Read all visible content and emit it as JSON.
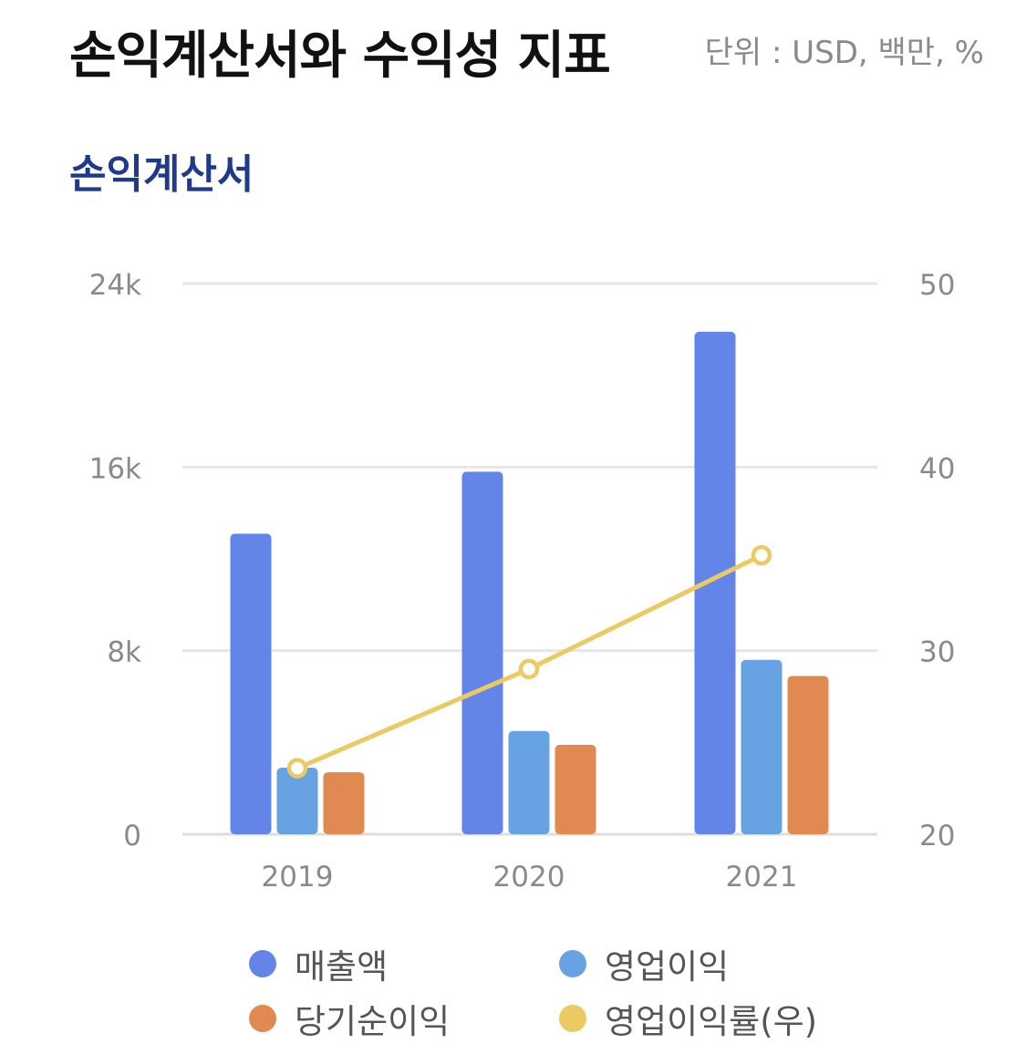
{
  "header": {
    "title": "손익계산서와 수익성 지표",
    "unit": "단위 : USD, 백만, %"
  },
  "section": {
    "title": "손익계산서"
  },
  "colors": {
    "revenue": "#6485e8",
    "operating_income": "#67a3e2",
    "net_income": "#e08a52",
    "operating_margin": "#ebc963",
    "grid": "#e6e6e6",
    "tick_text": "#8a8a8a"
  },
  "chart_data": {
    "type": "bar",
    "title": "",
    "xlabel": "",
    "ylabel": "",
    "categories": [
      "2019",
      "2020",
      "2021"
    ],
    "ylim": [
      0,
      24000
    ],
    "y_ticks": [
      0,
      8000,
      16000,
      24000
    ],
    "y_tick_labels": [
      "0",
      "8k",
      "16k",
      "24k"
    ],
    "y2lim": [
      20,
      50
    ],
    "y2_ticks": [
      20,
      30,
      40,
      50
    ],
    "y2_tick_labels": [
      "20",
      "30",
      "40",
      "50"
    ],
    "grid": true,
    "series": [
      {
        "name": "매출액",
        "type": "bar",
        "axis": "left",
        "color": "#6485e8",
        "values": [
          13100,
          15800,
          21900
        ]
      },
      {
        "name": "영업이익",
        "type": "bar",
        "axis": "left",
        "color": "#67a3e2",
        "values": [
          2900,
          4500,
          7600
        ]
      },
      {
        "name": "당기순이익",
        "type": "bar",
        "axis": "left",
        "color": "#e08a52",
        "values": [
          2700,
          3900,
          6900
        ]
      },
      {
        "name": "영업이익률(우)",
        "type": "line",
        "axis": "right",
        "color": "#ebc963",
        "values": [
          23.6,
          29.0,
          35.2
        ]
      }
    ],
    "legend_position": "bottom"
  }
}
